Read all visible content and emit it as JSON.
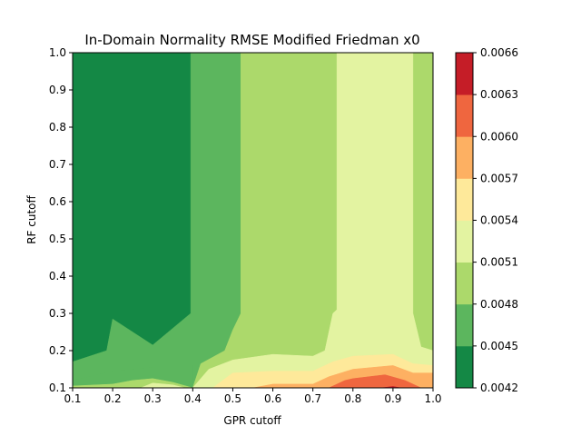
{
  "chart_data": {
    "type": "heatmap",
    "subtype": "filled-contour",
    "title": "In-Domain Normality RMSE Modified Friedman x0",
    "xlabel": "GPR cutoff",
    "ylabel": "RF cutoff",
    "xlim": [
      0.1,
      1.0
    ],
    "ylim": [
      0.1,
      1.0
    ],
    "x_ticks": [
      "0.1",
      "0.2",
      "0.3",
      "0.4",
      "0.5",
      "0.6",
      "0.7",
      "0.8",
      "0.9",
      "1.0"
    ],
    "y_ticks": [
      "0.1",
      "0.2",
      "0.3",
      "0.4",
      "0.5",
      "0.6",
      "0.7",
      "0.8",
      "0.9",
      "1.0"
    ],
    "colorbar": {
      "levels": [
        0.0042,
        0.0045,
        0.0048,
        0.0051,
        0.0054,
        0.0057,
        0.006,
        0.0063,
        0.0066
      ],
      "tick_labels": [
        "0.0042",
        "0.0045",
        "0.0048",
        "0.0051",
        "0.0054",
        "0.0057",
        "0.0060",
        "0.0063",
        "0.0066"
      ],
      "colors": [
        "#148845",
        "#5cb65e",
        "#acd96b",
        "#e3f3a1",
        "#fee99a",
        "#fdb062",
        "#ef663f",
        "#c51d27"
      ]
    },
    "regions": [
      {
        "level": 1,
        "points": [
          [
            0.1,
            0.1
          ],
          [
            1.0,
            0.1
          ],
          [
            1.0,
            1.0
          ],
          [
            0.1,
            1.0
          ]
        ]
      },
      {
        "level": 2,
        "points": [
          [
            0.39,
            0.1
          ],
          [
            1.0,
            0.1
          ],
          [
            1.0,
            1.0
          ],
          [
            0.395,
            1.0
          ],
          [
            0.395,
            0.3
          ],
          [
            0.3,
            0.215
          ],
          [
            0.2,
            0.285
          ],
          [
            0.185,
            0.2
          ],
          [
            0.1,
            0.17
          ],
          [
            0.1,
            0.1
          ]
        ]
      },
      {
        "level": 2,
        "points": [
          [
            0.1,
            0.1
          ],
          [
            0.4,
            0.1
          ],
          [
            0.4,
            0.16
          ],
          [
            0.3,
            0.155
          ],
          [
            0.2,
            0.145
          ],
          [
            0.1,
            0.12
          ]
        ]
      },
      {
        "level": 3,
        "points": [
          [
            0.52,
            1.0
          ],
          [
            0.52,
            0.3
          ],
          [
            0.5,
            0.255
          ],
          [
            0.48,
            0.2
          ],
          [
            0.42,
            0.165
          ],
          [
            0.4,
            0.1
          ],
          [
            1.0,
            0.1
          ],
          [
            1.0,
            1.0
          ]
        ]
      },
      {
        "level": 3,
        "points": [
          [
            0.1,
            0.1
          ],
          [
            0.4,
            0.1
          ],
          [
            0.35,
            0.115
          ],
          [
            0.3,
            0.125
          ],
          [
            0.25,
            0.12
          ],
          [
            0.2,
            0.11
          ],
          [
            0.1,
            0.105
          ]
        ]
      },
      {
        "level": 4,
        "points": [
          [
            0.76,
            1.0
          ],
          [
            0.76,
            0.31
          ],
          [
            0.75,
            0.3
          ],
          [
            0.73,
            0.2
          ],
          [
            0.7,
            0.185
          ],
          [
            0.6,
            0.19
          ],
          [
            0.5,
            0.175
          ],
          [
            0.44,
            0.15
          ],
          [
            0.4,
            0.1
          ],
          [
            1.0,
            0.1
          ],
          [
            1.0,
            0.2
          ],
          [
            0.97,
            0.21
          ],
          [
            0.95,
            0.3
          ],
          [
            0.95,
            1.0
          ]
        ]
      },
      {
        "level": 4,
        "points": [
          [
            0.27,
            0.1
          ],
          [
            0.3,
            0.113
          ],
          [
            0.35,
            0.108
          ],
          [
            0.38,
            0.1
          ]
        ]
      },
      {
        "level": 5,
        "points": [
          [
            0.45,
            0.1
          ],
          [
            0.5,
            0.14
          ],
          [
            0.6,
            0.145
          ],
          [
            0.7,
            0.145
          ],
          [
            0.75,
            0.17
          ],
          [
            0.8,
            0.185
          ],
          [
            0.9,
            0.19
          ],
          [
            0.95,
            0.165
          ],
          [
            1.0,
            0.16
          ],
          [
            1.0,
            0.1
          ]
        ]
      },
      {
        "level": 6,
        "points": [
          [
            0.55,
            0.1
          ],
          [
            0.6,
            0.11
          ],
          [
            0.7,
            0.11
          ],
          [
            0.74,
            0.13
          ],
          [
            0.8,
            0.15
          ],
          [
            0.9,
            0.16
          ],
          [
            0.95,
            0.14
          ],
          [
            1.0,
            0.14
          ],
          [
            1.0,
            0.1
          ]
        ]
      },
      {
        "level": 7,
        "points": [
          [
            0.74,
            0.1
          ],
          [
            0.78,
            0.12
          ],
          [
            0.8,
            0.125
          ],
          [
            0.88,
            0.135
          ],
          [
            0.93,
            0.12
          ],
          [
            0.97,
            0.1
          ]
        ]
      },
      {
        "level": 8,
        "points": [
          [
            0.87,
            0.1
          ],
          [
            0.9,
            0.104
          ],
          [
            0.92,
            0.1
          ]
        ]
      }
    ]
  }
}
